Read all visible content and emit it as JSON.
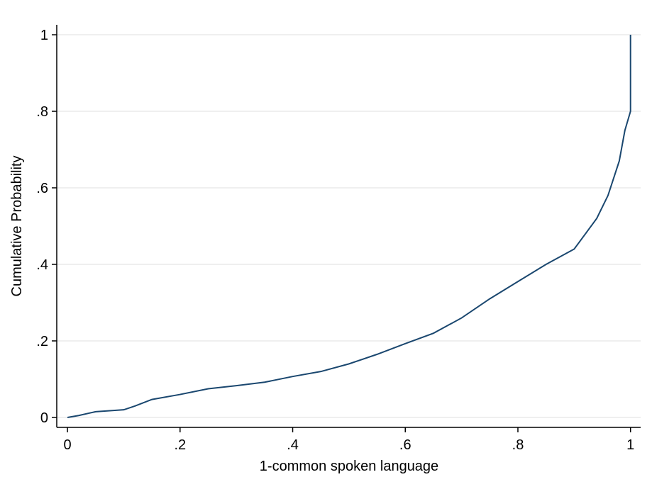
{
  "chart_data": {
    "type": "line",
    "x_label": "1-common spoken language",
    "y_label": "Cumulative Probability",
    "x": [
      0,
      0.02,
      0.05,
      0.1,
      0.12,
      0.15,
      0.2,
      0.25,
      0.3,
      0.35,
      0.4,
      0.45,
      0.5,
      0.55,
      0.6,
      0.65,
      0.7,
      0.75,
      0.8,
      0.85,
      0.9,
      0.92,
      0.94,
      0.96,
      0.98,
      0.99,
      1,
      1
    ],
    "series": [
      {
        "color": "#1a476f",
        "values": [
          0,
          0.005,
          0.015,
          0.02,
          0.03,
          0.047,
          0.06,
          0.075,
          0.083,
          0.092,
          0.107,
          0.12,
          0.14,
          0.165,
          0.193,
          0.22,
          0.26,
          0.31,
          0.355,
          0.4,
          0.44,
          0.48,
          0.52,
          0.58,
          0.67,
          0.75,
          0.8,
          1
        ]
      }
    ],
    "xlim": [
      -0.019,
      1.018
    ],
    "ylim": [
      -0.026,
      1.026
    ],
    "xticks": [
      0,
      {
        "value": 0.2,
        "label": ".2"
      },
      {
        "value": 0.4,
        "label": ".4"
      },
      {
        "value": 0.6,
        "label": ".6"
      },
      {
        "value": 0.8,
        "label": ".8"
      },
      1
    ],
    "yticks": [
      0,
      {
        "value": 0.2,
        "label": ".2"
      },
      {
        "value": 0.4,
        "label": ".4"
      },
      {
        "value": 0.6,
        "label": ".6"
      },
      {
        "value": 0.8,
        "label": ".8"
      },
      1
    ],
    "grid": true
  }
}
